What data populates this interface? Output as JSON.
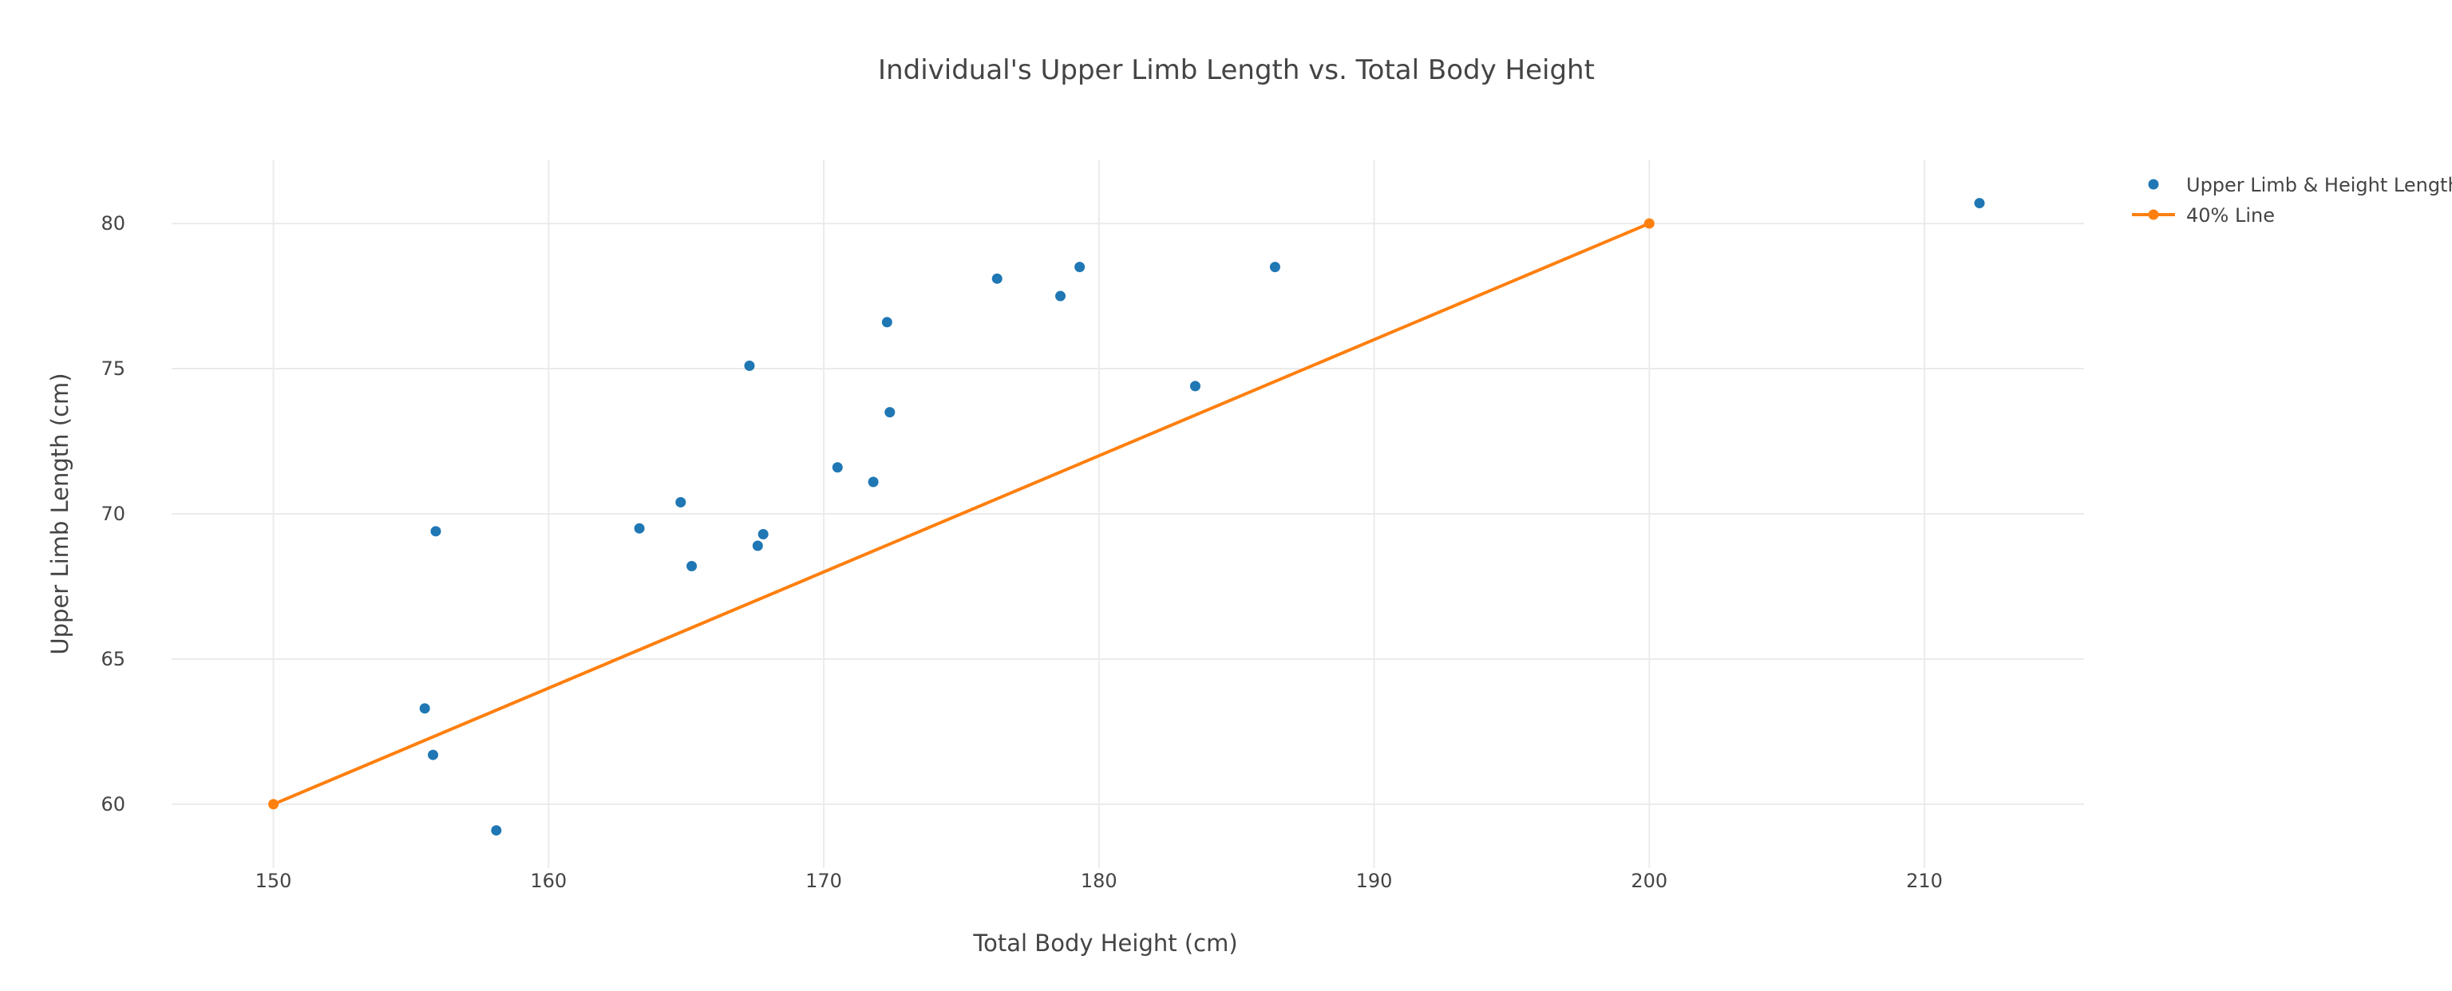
{
  "chart_data": {
    "type": "scatter",
    "title": "Individual's Upper Limb Length vs. Total Body Height",
    "xlabel": "Total Body Height (cm)",
    "ylabel": "Upper Limb Length (cm)",
    "xlim": [
      146.3,
      215.8
    ],
    "ylim": [
      57.8,
      82.2
    ],
    "x_ticks": [
      150,
      160,
      170,
      180,
      190,
      200,
      210
    ],
    "y_ticks": [
      60,
      65,
      70,
      75,
      80
    ],
    "grid": true,
    "legend_position": "top-right",
    "series": [
      {
        "name": "Upper Limb & Height Length",
        "mode": "markers",
        "color": "#1f77b4",
        "x": [
          155.5,
          155.8,
          155.9,
          158.1,
          163.3,
          164.8,
          165.2,
          167.3,
          167.6,
          167.8,
          170.5,
          171.8,
          172.3,
          172.4,
          176.3,
          178.6,
          179.3,
          183.5,
          186.4,
          212.0
        ],
        "y": [
          63.3,
          61.7,
          69.4,
          59.1,
          69.5,
          70.4,
          68.2,
          75.1,
          68.9,
          69.3,
          71.6,
          71.1,
          76.6,
          73.5,
          78.1,
          77.5,
          78.5,
          74.4,
          78.5,
          80.7
        ]
      },
      {
        "name": "40% Line",
        "mode": "lines+markers",
        "color": "#ff7f0e",
        "x": [
          150,
          200
        ],
        "y": [
          60,
          80
        ]
      }
    ]
  }
}
